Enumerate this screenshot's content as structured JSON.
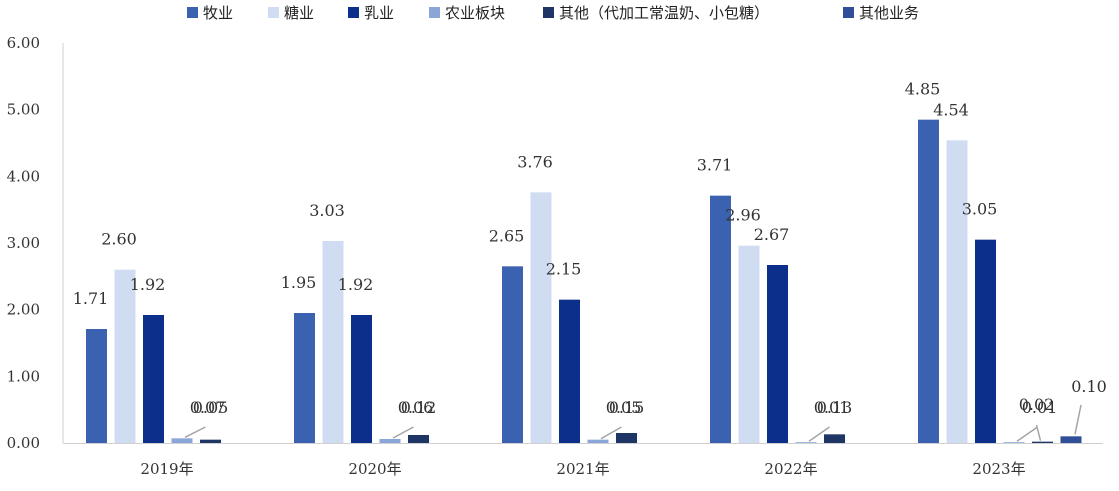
{
  "chart_data": {
    "type": "bar",
    "categories": [
      "2019年",
      "2020年",
      "2021年",
      "2022年",
      "2023年"
    ],
    "series": [
      {
        "name": "牧业",
        "color": "#3a62b0",
        "values": [
          1.71,
          1.95,
          2.65,
          3.71,
          4.85
        ]
      },
      {
        "name": "糖业",
        "color": "#cfdcf1",
        "values": [
          2.6,
          3.03,
          3.76,
          2.96,
          4.54
        ]
      },
      {
        "name": "乳业",
        "color": "#0c2f8c",
        "values": [
          1.92,
          1.92,
          2.15,
          2.67,
          3.05
        ]
      },
      {
        "name": "农业板块",
        "color": "#8aa6d9",
        "values": [
          0.07,
          0.06,
          0.05,
          0.01,
          0.01
        ]
      },
      {
        "name": "其他（代加工常温奶、小包糖）",
        "color": "#1e3566",
        "values": [
          0.05,
          0.12,
          0.15,
          0.13,
          0.02
        ]
      },
      {
        "name": "其他业务",
        "color": "#2f4f98",
        "values": [
          null,
          null,
          null,
          null,
          0.1
        ]
      }
    ],
    "ylim": [
      0,
      6
    ],
    "yticks": [
      "0.00",
      "1.00",
      "2.00",
      "3.00",
      "4.00",
      "5.00",
      "6.00"
    ],
    "value_labels": [
      [
        "1.71",
        "2.60",
        "1.92",
        "0.07",
        "0.05",
        ""
      ],
      [
        "1.95",
        "3.03",
        "1.92",
        "0.06",
        "0.12",
        ""
      ],
      [
        "2.65",
        "3.76",
        "2.15",
        "0.05",
        "0.15",
        ""
      ],
      [
        "3.71",
        "2.96",
        "2.67",
        "0.01",
        "0.13",
        ""
      ],
      [
        "4.85",
        "4.54",
        "3.05",
        "0.01",
        "0.02",
        "0.10"
      ]
    ],
    "legend_position": "top",
    "grid": false
  }
}
